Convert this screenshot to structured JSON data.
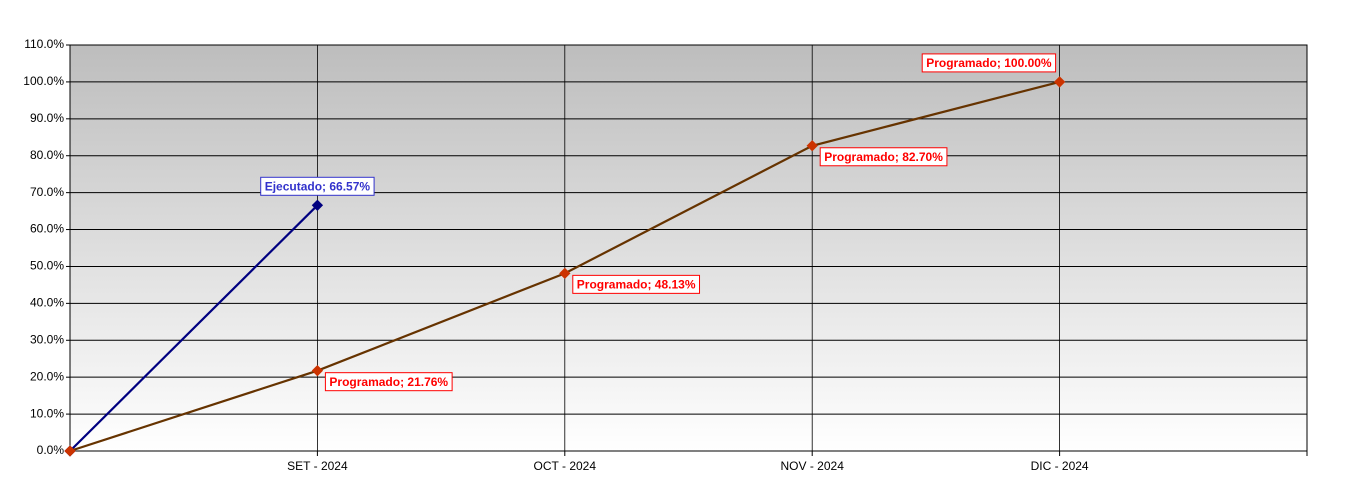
{
  "chart_data": {
    "type": "line",
    "categories": [
      null,
      "SET - 2024",
      "OCT - 2024",
      "NOV - 2024",
      "DIC - 2024",
      null
    ],
    "series": [
      {
        "name": "Ejecutado",
        "color": "#000080",
        "values": [
          0,
          66.57,
          null,
          null,
          null,
          null
        ],
        "value_labels": [
          null,
          "Ejecutado; 66.57%",
          null,
          null,
          null,
          null
        ],
        "label_color": "#3333cc"
      },
      {
        "name": "Programado",
        "color": "#663300",
        "marker_color": "#cc3300",
        "values": [
          0,
          21.76,
          48.13,
          82.7,
          100,
          null
        ],
        "value_labels": [
          null,
          "Programado; 21.76%",
          "Programado; 48.13%",
          "Programado; 82.70%",
          "Programado; 100.00%",
          null
        ],
        "label_color": "#ff0000"
      }
    ],
    "ylim": [
      0,
      110
    ],
    "yticks": [
      {
        "value": 0,
        "label": "0.0%"
      },
      {
        "value": 10,
        "label": "10.0%"
      },
      {
        "value": 20,
        "label": "20.0%"
      },
      {
        "value": 30,
        "label": "30.0%"
      },
      {
        "value": 40,
        "label": "40.0%"
      },
      {
        "value": 50,
        "label": "50.0%"
      },
      {
        "value": 60,
        "label": "60.0%"
      },
      {
        "value": 70,
        "label": "70.0%"
      },
      {
        "value": 80,
        "label": "80.0%"
      },
      {
        "value": 90,
        "label": "90.0%"
      },
      {
        "value": 100,
        "label": "100.0%"
      },
      {
        "value": 110,
        "label": "110.0%"
      }
    ],
    "grid": true
  }
}
